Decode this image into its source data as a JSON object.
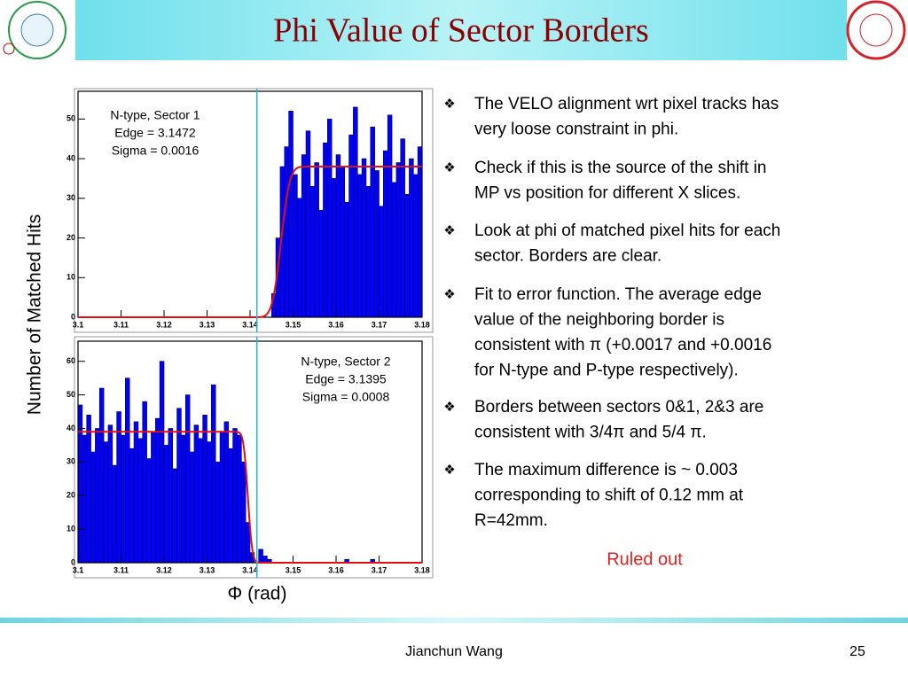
{
  "header": {
    "title": "Phi Value of Sector Borders"
  },
  "axis_labels": {
    "y": "Number of Matched Hits",
    "x": "Φ (rad)"
  },
  "chart_data": [
    {
      "type": "histogram",
      "color": "#0000ff",
      "xlim": [
        3.1,
        3.18
      ],
      "ylim": [
        0,
        57
      ],
      "xticks": [
        3.1,
        3.11,
        3.12,
        3.13,
        3.14,
        3.15,
        3.16,
        3.17,
        3.18
      ],
      "yticks": [
        0,
        10,
        20,
        30,
        40,
        50
      ],
      "bins": [
        3.1,
        3.101,
        3.102,
        3.103,
        3.104,
        3.105,
        3.106,
        3.107,
        3.108,
        3.109,
        3.11,
        3.111,
        3.112,
        3.113,
        3.114,
        3.115,
        3.116,
        3.117,
        3.118,
        3.119,
        3.12,
        3.121,
        3.122,
        3.123,
        3.124,
        3.125,
        3.126,
        3.127,
        3.128,
        3.129,
        3.13,
        3.131,
        3.132,
        3.133,
        3.134,
        3.135,
        3.136,
        3.137,
        3.138,
        3.139,
        3.14,
        3.141,
        3.142,
        3.143,
        3.144,
        3.145,
        3.146,
        3.147,
        3.148,
        3.149,
        3.15,
        3.151,
        3.152,
        3.153,
        3.154,
        3.155,
        3.156,
        3.157,
        3.158,
        3.159,
        3.16,
        3.161,
        3.162,
        3.163,
        3.164,
        3.165,
        3.166,
        3.167,
        3.168,
        3.169,
        3.17,
        3.171,
        3.172,
        3.173,
        3.174,
        3.175,
        3.176,
        3.177,
        3.178,
        3.179,
        3.18
      ],
      "values": [
        0,
        0,
        0,
        0,
        0,
        0,
        0,
        0,
        0,
        0,
        0,
        0,
        0,
        0,
        0,
        0,
        0,
        0,
        0,
        0,
        0,
        0,
        0,
        0,
        0,
        0,
        0,
        0,
        0,
        0,
        0,
        0,
        0,
        0,
        0,
        0,
        0,
        0,
        0,
        0,
        0,
        0,
        0,
        0,
        0,
        6,
        20,
        38,
        43,
        52,
        36,
        30,
        41,
        47,
        33,
        39,
        27,
        44,
        50,
        35,
        41,
        38,
        29,
        46,
        53,
        36,
        40,
        33,
        48,
        37,
        28,
        42,
        51,
        34,
        39,
        45,
        31,
        40,
        36,
        43
      ],
      "annotation": [
        "N-type, Sector 1",
        "Edge = 3.1472",
        "Sigma = 0.0016"
      ],
      "fit": {
        "level": 38,
        "edge": 3.1472,
        "sigma": 0.0016,
        "direction": "rising",
        "color": "#e01010"
      },
      "reference_x": 3.1416
    },
    {
      "type": "histogram",
      "color": "#0000ff",
      "xlim": [
        3.1,
        3.18
      ],
      "ylim": [
        0,
        66
      ],
      "xticks": [
        3.1,
        3.11,
        3.12,
        3.13,
        3.14,
        3.15,
        3.16,
        3.17,
        3.18
      ],
      "yticks": [
        0,
        10,
        20,
        30,
        40,
        50,
        60
      ],
      "bins": [
        3.1,
        3.101,
        3.102,
        3.103,
        3.104,
        3.105,
        3.106,
        3.107,
        3.108,
        3.109,
        3.11,
        3.111,
        3.112,
        3.113,
        3.114,
        3.115,
        3.116,
        3.117,
        3.118,
        3.119,
        3.12,
        3.121,
        3.122,
        3.123,
        3.124,
        3.125,
        3.126,
        3.127,
        3.128,
        3.129,
        3.13,
        3.131,
        3.132,
        3.133,
        3.134,
        3.135,
        3.136,
        3.137,
        3.138,
        3.139,
        3.14,
        3.141,
        3.142,
        3.143,
        3.144,
        3.145,
        3.146,
        3.147,
        3.148,
        3.149,
        3.15,
        3.151,
        3.152,
        3.153,
        3.154,
        3.155,
        3.156,
        3.157,
        3.158,
        3.159,
        3.16,
        3.161,
        3.162,
        3.163,
        3.164,
        3.165,
        3.166,
        3.167,
        3.168,
        3.169,
        3.17,
        3.171,
        3.172,
        3.173,
        3.174,
        3.175,
        3.176,
        3.177,
        3.178,
        3.179,
        3.18
      ],
      "values": [
        47,
        38,
        44,
        33,
        40,
        52,
        36,
        41,
        29,
        45,
        38,
        55,
        34,
        42,
        37,
        48,
        31,
        39,
        43,
        60,
        35,
        40,
        28,
        46,
        38,
        50,
        33,
        41,
        37,
        44,
        36,
        53,
        30,
        39,
        42,
        34,
        40,
        38,
        30,
        12,
        3,
        0,
        4,
        2,
        1,
        0,
        0,
        0,
        0,
        0,
        0,
        0,
        0,
        0,
        0,
        0,
        0,
        0,
        0,
        0,
        0,
        0,
        1,
        0,
        0,
        0,
        0,
        0,
        1,
        0,
        0,
        0,
        0,
        0,
        0,
        0,
        0,
        0,
        0,
        0
      ],
      "annotation": [
        "N-type, Sector 2",
        "Edge = 3.1395",
        "Sigma = 0.0008"
      ],
      "fit": {
        "level": 39,
        "edge": 3.1395,
        "sigma": 0.0008,
        "direction": "falling",
        "color": "#e01010"
      },
      "reference_x": 3.1416
    }
  ],
  "bullets": [
    [
      "The VELO alignment wrt pixel tracks has",
      "very loose constraint in phi."
    ],
    [
      "Check if this is the source of the shift in",
      "MP vs position for different X slices."
    ],
    [
      "Look at phi of matched pixel hits for each",
      "sector. Borders are clear."
    ],
    [
      "Fit to error function. The average edge",
      "value of the neighboring border is",
      "consistent with π (+0.0017 and +0.0016",
      "for N-type and P-type respectively)."
    ],
    [
      "Borders between sectors 0&1, 2&3 are",
      "consistent with 3/4π and 5/4 π."
    ],
    [
      "The maximum difference is ~ 0.003",
      "corresponding to shift of 0.12 mm at",
      "R=42mm."
    ]
  ],
  "conclusion": "Ruled out",
  "footer": {
    "author": "Jianchun Wang",
    "page": "25"
  }
}
